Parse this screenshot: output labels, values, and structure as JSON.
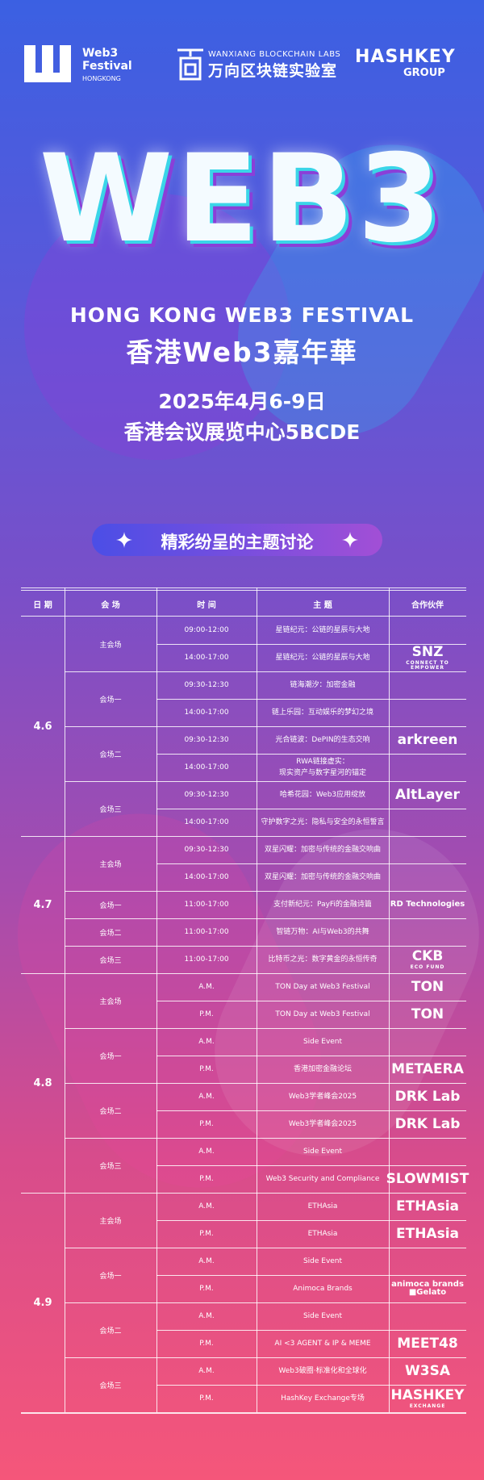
{
  "header": {
    "festival_logo": [
      "Web3",
      "Festival",
      "HONGKONG"
    ],
    "wanxiang": {
      "en": "WANXIANG BLOCKCHAIN LABS",
      "cn": "万向区块链实验室"
    },
    "hashkey": {
      "name": "HASHKEY",
      "sub": "GROUP"
    }
  },
  "hero": {
    "logo": "WEB3",
    "title_en": "HONG KONG WEB3 FESTIVAL",
    "title_cn": "香港Web3嘉年華",
    "date": "2025年4月6-9日",
    "venue": "香港会议展览中心5BCDE"
  },
  "section_title": "精彩纷呈的主题讨论",
  "table": {
    "headers": [
      "日 期",
      "会 场",
      "时 间",
      "主 题",
      "合作伙伴"
    ],
    "days": [
      {
        "date": "4.6",
        "venues": [
          {
            "name": "主会场",
            "sessions": [
              {
                "time": "09:00-12:00",
                "topic": "星链纪元：公链的星辰与大地"
              },
              {
                "time": "14:00-17:00",
                "topic": "星链纪元：公链的星辰与大地",
                "partner": "SNZ",
                "partner_sub": "CONNECT TO EMPOWER"
              }
            ]
          },
          {
            "name": "会场一",
            "sessions": [
              {
                "time": "09:30-12:30",
                "topic": "链海潮汐：加密金融"
              },
              {
                "time": "14:00-17:00",
                "topic": "链上乐园：互动娱乐的梦幻之境"
              }
            ]
          },
          {
            "name": "会场二",
            "sessions": [
              {
                "time": "09:30-12:30",
                "topic": "光合链波：DePIN的生态交响",
                "partner": "arkreen"
              },
              {
                "time": "14:00-17:00",
                "topic": "RWA链接虚实：\n现实资产与数字星河的锚定"
              }
            ]
          },
          {
            "name": "会场三",
            "sessions": [
              {
                "time": "09:30-12:30",
                "topic": "哈希花园：Web3应用绽放",
                "partner": "AltLayer"
              },
              {
                "time": "14:00-17:00",
                "topic": "守护数字之光：隐私与安全的永恒誓言"
              }
            ]
          }
        ]
      },
      {
        "date": "4.7",
        "venues": [
          {
            "name": "主会场",
            "sessions": [
              {
                "time": "09:30-12:30",
                "topic": "双星闪耀：加密与传统的金融交响曲"
              },
              {
                "time": "14:00-17:00",
                "topic": "双星闪耀：加密与传统的金融交响曲"
              }
            ]
          },
          {
            "name": "会场一",
            "sessions": [
              {
                "time": "11:00-17:00",
                "topic": "支付新纪元：PayFi的金融诗篇",
                "partner": "RD Technologies"
              }
            ]
          },
          {
            "name": "会场二",
            "sessions": [
              {
                "time": "11:00-17:00",
                "topic": "智链万物：AI与Web3的共舞"
              }
            ]
          },
          {
            "name": "会场三",
            "sessions": [
              {
                "time": "11:00-17:00",
                "topic": "比特币之光：数字黄金的永恒传奇",
                "partner": "CKB",
                "partner_sub": "ECO FUND"
              }
            ]
          }
        ]
      },
      {
        "date": "4.8",
        "venues": [
          {
            "name": "主会场",
            "sessions": [
              {
                "time": "A.M.",
                "topic": "TON Day at Web3 Festival",
                "partner": "TON"
              },
              {
                "time": "P.M.",
                "topic": "TON Day at Web3 Festival",
                "partner": "TON"
              }
            ]
          },
          {
            "name": "会场一",
            "sessions": [
              {
                "time": "A.M.",
                "topic": "Side Event"
              },
              {
                "time": "P.M.",
                "topic": "香港加密金融论坛",
                "partner": "METAERA"
              }
            ]
          },
          {
            "name": "会场二",
            "sessions": [
              {
                "time": "A.M.",
                "topic": "Web3学者峰会2025",
                "partner": "DRK Lab"
              },
              {
                "time": "P.M.",
                "topic": "Web3学者峰会2025",
                "partner": "DRK Lab"
              }
            ]
          },
          {
            "name": "会场三",
            "sessions": [
              {
                "time": "A.M.",
                "topic": "Side Event"
              },
              {
                "time": "P.M.",
                "topic": "Web3 Security and Compliance",
                "partner": "SLOWMIST"
              }
            ]
          }
        ]
      },
      {
        "date": "4.9",
        "venues": [
          {
            "name": "主会场",
            "sessions": [
              {
                "time": "A.M.",
                "topic": "ETHAsia",
                "partner": "ETHAsia"
              },
              {
                "time": "P.M.",
                "topic": "ETHAsia",
                "partner": "ETHAsia"
              }
            ]
          },
          {
            "name": "会场一",
            "sessions": [
              {
                "time": "A.M.",
                "topic": "Side Event"
              },
              {
                "time": "P.M.",
                "topic": "Animoca Brands",
                "partner": "animoca brands ■Gelato"
              }
            ]
          },
          {
            "name": "会场二",
            "sessions": [
              {
                "time": "A.M.",
                "topic": "Side Event"
              },
              {
                "time": "P.M.",
                "topic": "AI <3 AGENT & IP & MEME",
                "partner": "MEET48"
              }
            ]
          },
          {
            "name": "会场三",
            "sessions": [
              {
                "time": "A.M.",
                "topic": "Web3破圈·标准化和全球化",
                "partner": "W3SA"
              },
              {
                "time": "P.M.",
                "topic": "HashKey Exchange专场",
                "partner": "HASHKEY",
                "partner_sub": "EXCHANGE"
              }
            ]
          }
        ]
      }
    ]
  }
}
